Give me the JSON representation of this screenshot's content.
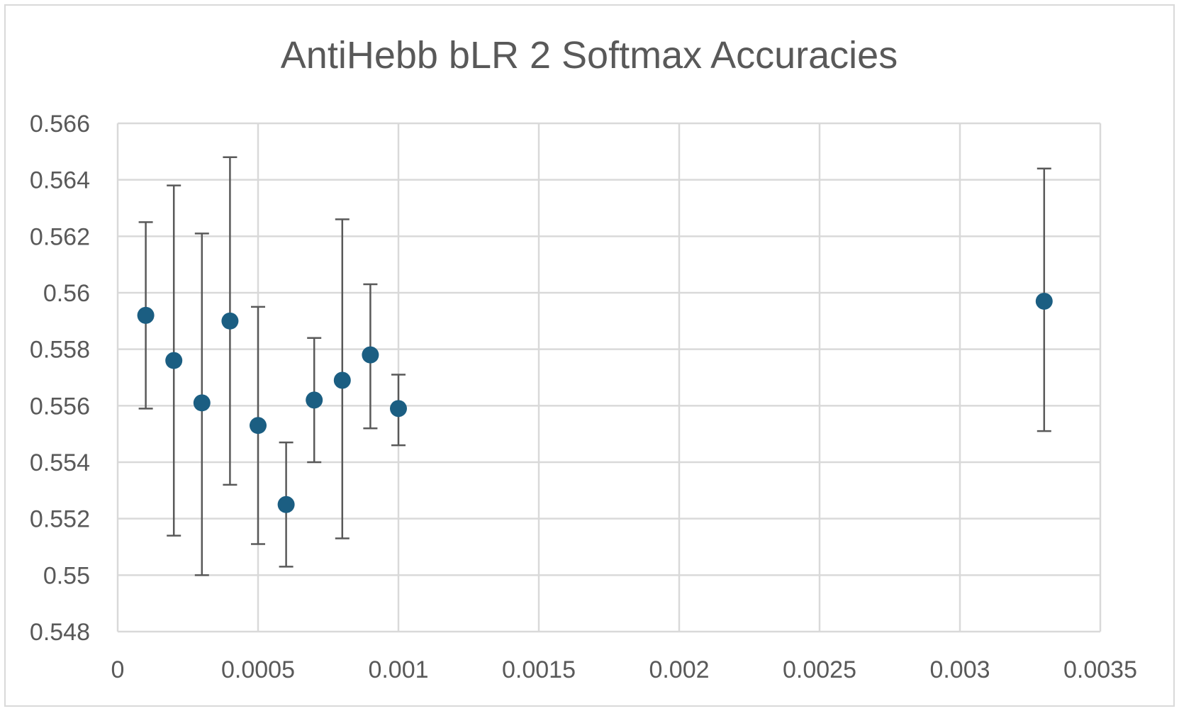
{
  "chart_data": {
    "type": "scatter",
    "title": "AntiHebb bLR 2 Softmax Accuracies",
    "xlabel": "",
    "ylabel": "",
    "xlim": [
      0,
      0.0035
    ],
    "ylim": [
      0.548,
      0.566
    ],
    "x_ticks": [
      0,
      0.0005,
      0.001,
      0.0015,
      0.002,
      0.0025,
      0.003,
      0.0035
    ],
    "x_tick_labels": [
      "0",
      "0.0005",
      "0.001",
      "0.0015",
      "0.002",
      "0.0025",
      "0.003",
      "0.0035"
    ],
    "y_ticks": [
      0.548,
      0.55,
      0.552,
      0.554,
      0.556,
      0.558,
      0.56,
      0.562,
      0.564,
      0.566
    ],
    "y_tick_labels": [
      "0.548",
      "0.55",
      "0.552",
      "0.554",
      "0.556",
      "0.558",
      "0.56",
      "0.562",
      "0.564",
      "0.566"
    ],
    "grid": true,
    "legend": "none",
    "marker_color": "#1b5e82",
    "error_bar_color": "#595959",
    "points": [
      {
        "x": 0.0001,
        "y": 0.5592,
        "err_low": 0.5559,
        "err_high": 0.5625
      },
      {
        "x": 0.0002,
        "y": 0.5576,
        "err_low": 0.5514,
        "err_high": 0.5638
      },
      {
        "x": 0.0003,
        "y": 0.5561,
        "err_low": 0.55,
        "err_high": 0.5621
      },
      {
        "x": 0.0004,
        "y": 0.559,
        "err_low": 0.5532,
        "err_high": 0.5648
      },
      {
        "x": 0.0005,
        "y": 0.5553,
        "err_low": 0.5511,
        "err_high": 0.5595
      },
      {
        "x": 0.0006,
        "y": 0.5525,
        "err_low": 0.5503,
        "err_high": 0.5547
      },
      {
        "x": 0.0007,
        "y": 0.5562,
        "err_low": 0.554,
        "err_high": 0.5584
      },
      {
        "x": 0.0008,
        "y": 0.5569,
        "err_low": 0.5513,
        "err_high": 0.5626
      },
      {
        "x": 0.0009,
        "y": 0.5578,
        "err_low": 0.5552,
        "err_high": 0.5603
      },
      {
        "x": 0.001,
        "y": 0.5559,
        "err_low": 0.5546,
        "err_high": 0.5571
      },
      {
        "x": 0.0033,
        "y": 0.5597,
        "err_low": 0.5551,
        "err_high": 0.5644
      }
    ]
  }
}
